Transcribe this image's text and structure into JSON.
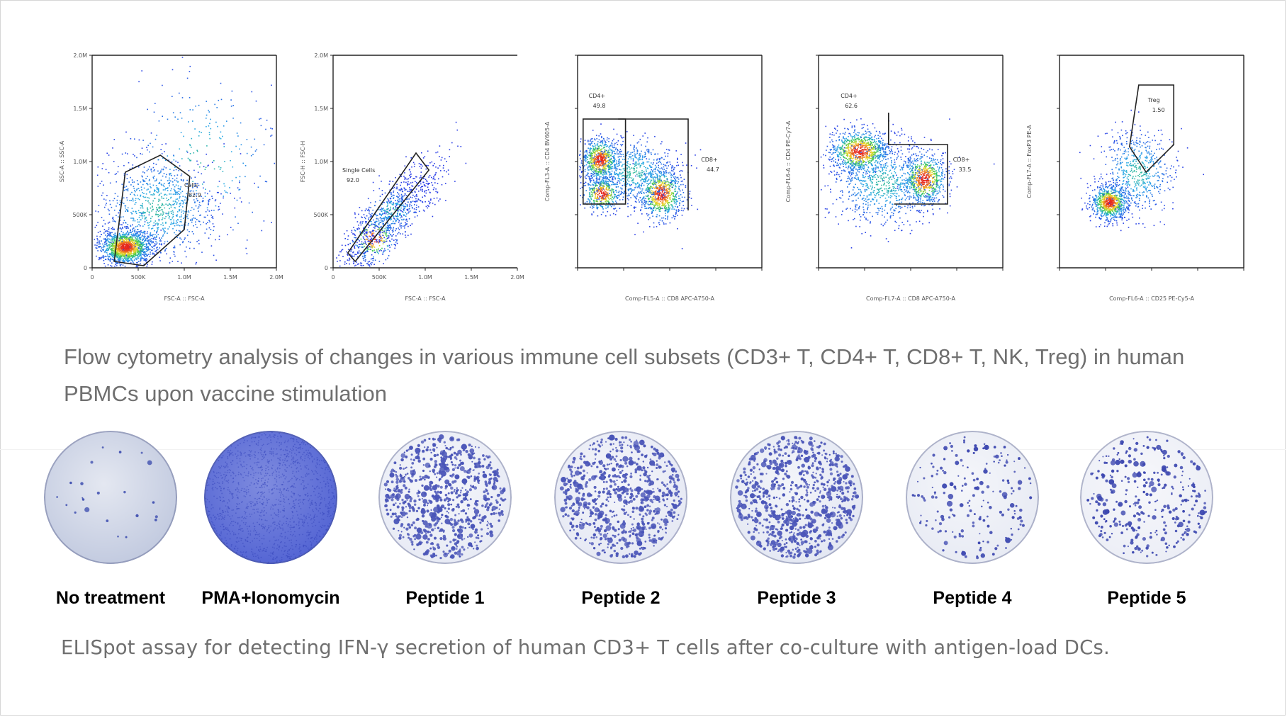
{
  "flow_panels": [
    {
      "x_label": "FSC-A :: FSC-A",
      "y_label": "SSC-A :: SSC-A",
      "x_ticks": [
        "0",
        "500K",
        "1.0M",
        "1.5M",
        "2.0M"
      ],
      "y_ticks": [
        "0",
        "500K",
        "1.0M",
        "1.5M",
        "2.0M"
      ],
      "gate_name": "Cells",
      "gate_value": "82.9"
    },
    {
      "x_label": "FSC-A :: FSC-A",
      "y_label": "FSC-H :: FSC-H",
      "x_ticks": [
        "0",
        "500K",
        "1.0M",
        "1.5M",
        "2.0M"
      ],
      "y_ticks": [
        "0",
        "500K",
        "1.0M",
        "1.5M",
        "2.0M"
      ],
      "gate_name": "Single Cells",
      "gate_value": "92.0"
    },
    {
      "x_label": "Comp-FL5-A :: CD8 APC-A750-A",
      "y_label": "Comp-FL3-A :: CD4 BV605-A",
      "gate_name": "CD4+",
      "gate_value": "49.8",
      "gate2_name": "CD8+",
      "gate2_value": "44.7"
    },
    {
      "x_label": "Comp-FL7-A :: CD8 APC-A750-A",
      "y_label": "Comp-FL6-A :: CD4 PE-Cy7-A",
      "gate_name": "CD4+",
      "gate_value": "62.6",
      "gate2_name": "CD8+",
      "gate2_value": "33.5"
    },
    {
      "x_label": "Comp-FL6-A :: CD25 PE-Cy5-A",
      "y_label": "Comp-FL7-A :: FoxP3 PE-A",
      "gate_name": "Treg",
      "gate_value": "1.50"
    }
  ],
  "caption_flow": "Flow cytometry analysis of changes in various immune cell subsets (CD3+ T, CD4+ T, CD8+ T, NK, Treg) in human PBMCs upon vaccine stimulation",
  "wells": [
    {
      "label": "No treatment",
      "bg": "#c3cbe0",
      "spot_color": "#3f4fb0",
      "density": 0.02
    },
    {
      "label": "PMA+Ionomycin",
      "bg": "#5566d4",
      "spot_color": "#3344bb",
      "density": 1.0
    },
    {
      "label": "Peptide 1",
      "bg": "#e8ebf5",
      "spot_color": "#4a55b8",
      "density": 0.85
    },
    {
      "label": "Peptide 2",
      "bg": "#e6e9f4",
      "spot_color": "#4a55b8",
      "density": 0.8
    },
    {
      "label": "Peptide 3",
      "bg": "#e4e8f3",
      "spot_color": "#4a55b8",
      "density": 0.85
    },
    {
      "label": "Peptide 4",
      "bg": "#e8ebf4",
      "spot_color": "#3d48b0",
      "density": 0.2
    },
    {
      "label": "Peptide 5",
      "bg": "#eceef6",
      "spot_color": "#3d48b0",
      "density": 0.35
    }
  ],
  "caption_elispot": "ELISpot assay for detecting IFN-γ secretion of human CD3+ T cells after co-culture with antigen-load DCs."
}
